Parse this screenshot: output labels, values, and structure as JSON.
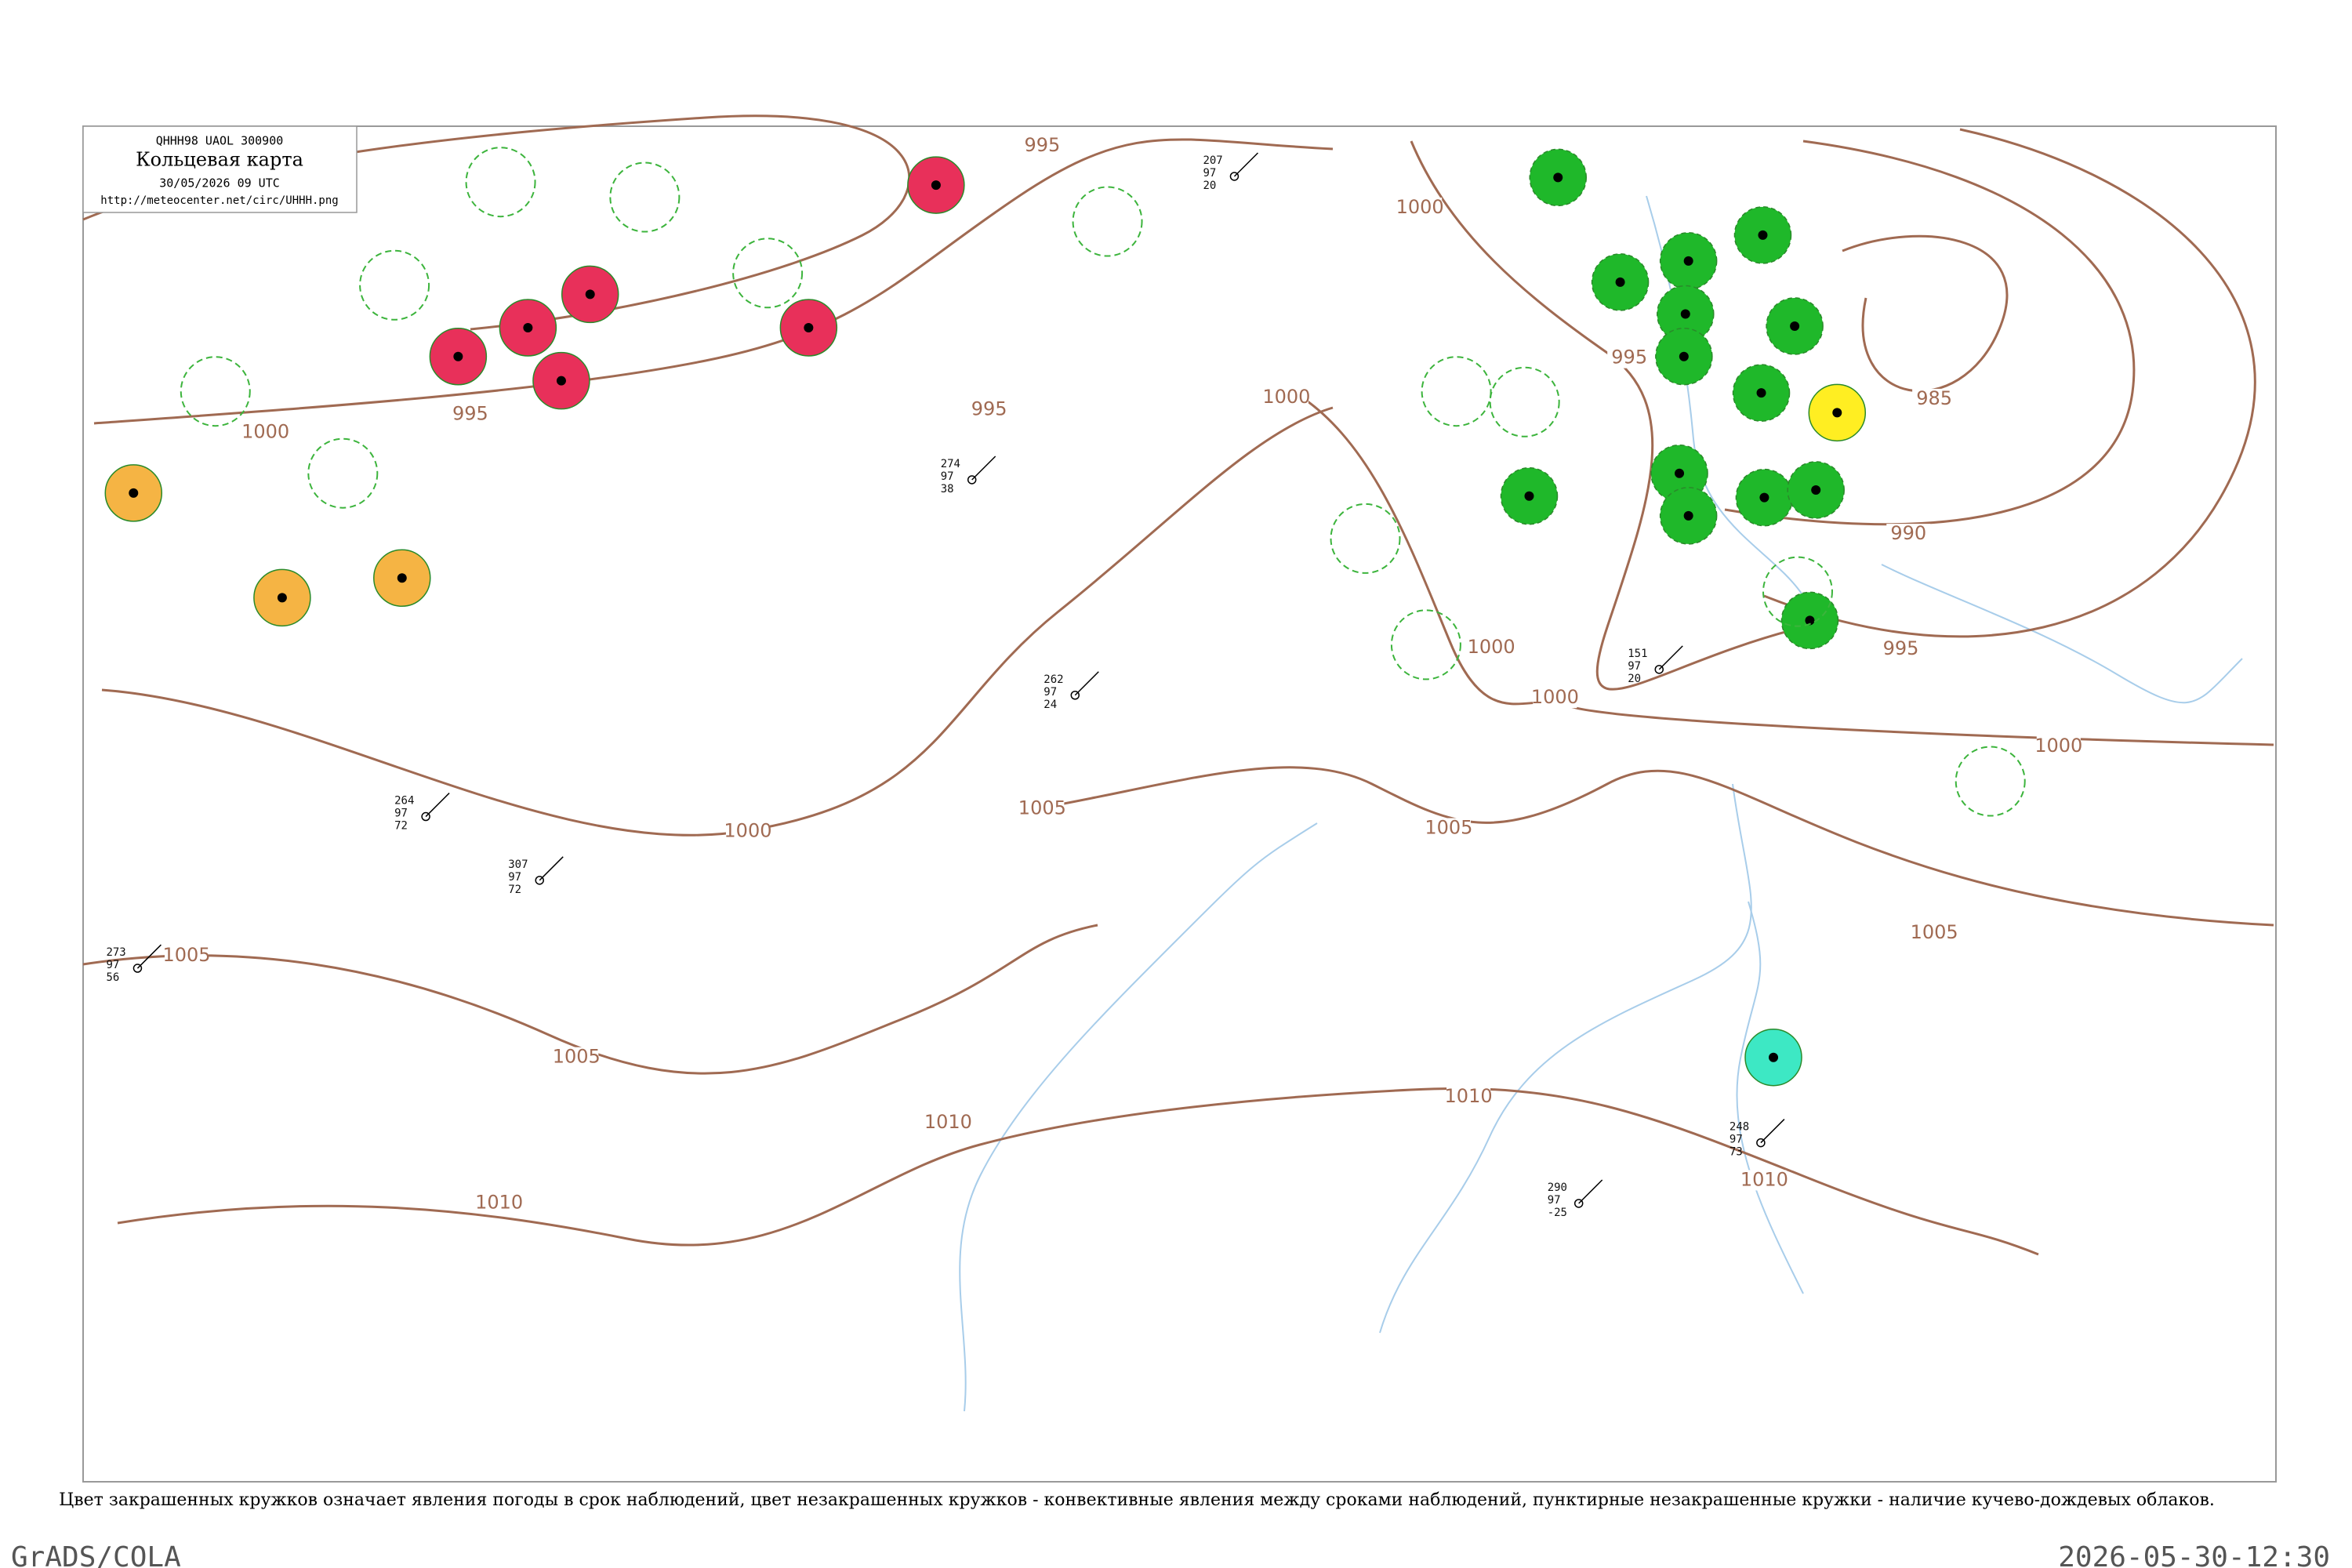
{
  "header": {
    "code": "QHHH98  UAOL  300900",
    "title": "Кольцевая карта",
    "date": "30/05/2026 09 UTC",
    "url": "http://meteocenter.net/circ/UHHH.png"
  },
  "isobar_labels": [
    995,
    1000,
    995,
    985,
    990,
    995,
    1000,
    995,
    995,
    1000,
    1000,
    1000,
    1000,
    1005,
    1005,
    1000,
    1005,
    1005,
    1005,
    1010,
    1010,
    1010,
    1010
  ],
  "stations": [
    {
      "lines": [
        "207",
        "97",
        "20"
      ]
    },
    {
      "lines": [
        "274",
        "97",
        "38"
      ]
    },
    {
      "lines": [
        "262",
        "97",
        "24"
      ]
    },
    {
      "lines": [
        "264",
        "97",
        "72"
      ]
    },
    {
      "lines": [
        "151",
        "97",
        "20"
      ]
    },
    {
      "lines": [
        "248",
        "97",
        "73"
      ]
    },
    {
      "lines": [
        "290",
        "97",
        "-25"
      ]
    },
    {
      "lines": [
        "273",
        "97",
        "56"
      ]
    },
    {
      "lines": [
        "307",
        "97",
        "72"
      ]
    }
  ],
  "caption": "Цвет закрашенных кружков означает явления погоды в срок наблюдений, цвет незакрашенных кружков - конвективные явления между сроками наблюдений, пунктирные незакрашенные кружки - наличие кучево-дождевых облаков.",
  "footer": {
    "left": "GrADS/COLA",
    "right": "2026-05-30-12:30"
  }
}
